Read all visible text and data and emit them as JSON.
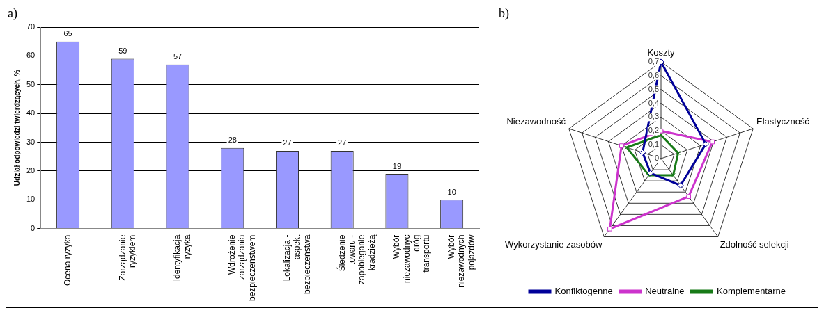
{
  "chart_data": [
    {
      "type": "bar",
      "title": "a)",
      "ylabel": "Udział odpowiedzi twierdzących, %",
      "categories": [
        "Ocena ryzyka",
        "Zarządzanie ryzykiem",
        "Identyfikacja ryzyka",
        "Wdrożenie zarządzania bezpieczeństwem",
        "Lokalizacja - aspekt bezpieczeństwa",
        "Śledzenie towaru - zapobieganie kradzieżą",
        "Wybór niezawodnyc dróg transportu",
        "Wybór niezawodnych pojazdów"
      ],
      "values": [
        65,
        59,
        57,
        28,
        27,
        27,
        19,
        10
      ],
      "color": "#9999ff",
      "ylim": [
        0,
        70
      ],
      "yticks": [
        0,
        10,
        20,
        30,
        40,
        50,
        60,
        70
      ],
      "grid": "y",
      "data_labels": true,
      "legend": false
    },
    {
      "type": "radar",
      "title": "b)",
      "categories": [
        "Koszty",
        "Elastyczność",
        "Zdolność selekcji",
        "Wykorzystanie zasobów",
        "Niezawodność"
      ],
      "series": [
        {
          "name": "Konfiktogenne",
          "color": "#000099",
          "marker": "diamond",
          "values": [
            0.7,
            0.34,
            0.24,
            0.13,
            0.14
          ]
        },
        {
          "name": "Neutralne",
          "color": "#cc33cc",
          "marker": "square",
          "values": [
            0.2,
            0.39,
            0.34,
            0.63,
            0.3
          ]
        },
        {
          "name": "Komplementarne",
          "color": "#177a17",
          "marker": "cross",
          "values": [
            0.17,
            0.13,
            0.15,
            0.15,
            0.26
          ]
        }
      ],
      "ylim": [
        0,
        0.7
      ],
      "yticks": [
        {
          "value": 0,
          "label": "0"
        },
        {
          "value": 0.1,
          "label": "0,1"
        },
        {
          "value": 0.2,
          "label": "0,2"
        },
        {
          "value": 0.3,
          "label": "0,3"
        },
        {
          "value": 0.4,
          "label": "0,4"
        },
        {
          "value": 0.5,
          "label": "0,5"
        },
        {
          "value": 0.6,
          "label": "0,6"
        },
        {
          "value": 0.7,
          "label": "0,7"
        }
      ],
      "grid": true,
      "legend": "bottom"
    }
  ]
}
